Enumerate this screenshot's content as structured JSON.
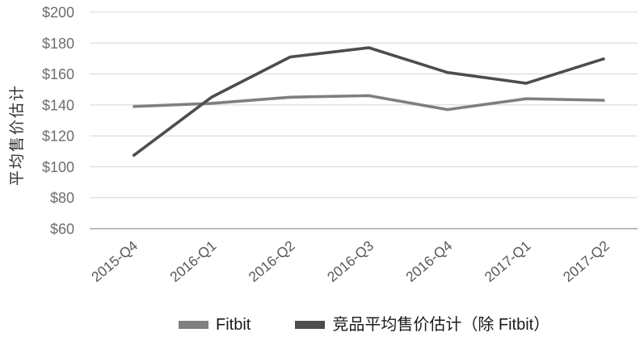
{
  "chart_data": {
    "type": "line",
    "title": "",
    "ylabel": "平均售价估计",
    "xlabel": "",
    "categories": [
      "2015-Q4",
      "2016-Q1",
      "2016-Q2",
      "2016-Q3",
      "2016-Q4",
      "2017-Q1",
      "2017-Q2"
    ],
    "series": [
      {
        "name": "Fitbit",
        "color": "#7f7f7f",
        "values": [
          139,
          141,
          145,
          146,
          137,
          144,
          143
        ]
      },
      {
        "name": "竞品平均售价估计（除 Fitbit）",
        "color": "#4d4d4d",
        "values": [
          107,
          145,
          171,
          177,
          161,
          154,
          170
        ]
      }
    ],
    "ylim": [
      60,
      200
    ],
    "y_tick_step": 20,
    "y_ticks": [
      "$200",
      "$180",
      "$160",
      "$140",
      "$120",
      "$100",
      "$80",
      "$60"
    ],
    "tick_prefix": "$",
    "grid": "horizontal",
    "legend_position": "bottom"
  },
  "colors": {
    "gridline": "#dadada",
    "axis_line": "#a6a6a6",
    "y_tick_label": "#6e6e6e",
    "x_tick_label": "#595959",
    "y_axis_title": "#333333",
    "legend_text": "#1a1a1a",
    "background": "#ffffff"
  }
}
